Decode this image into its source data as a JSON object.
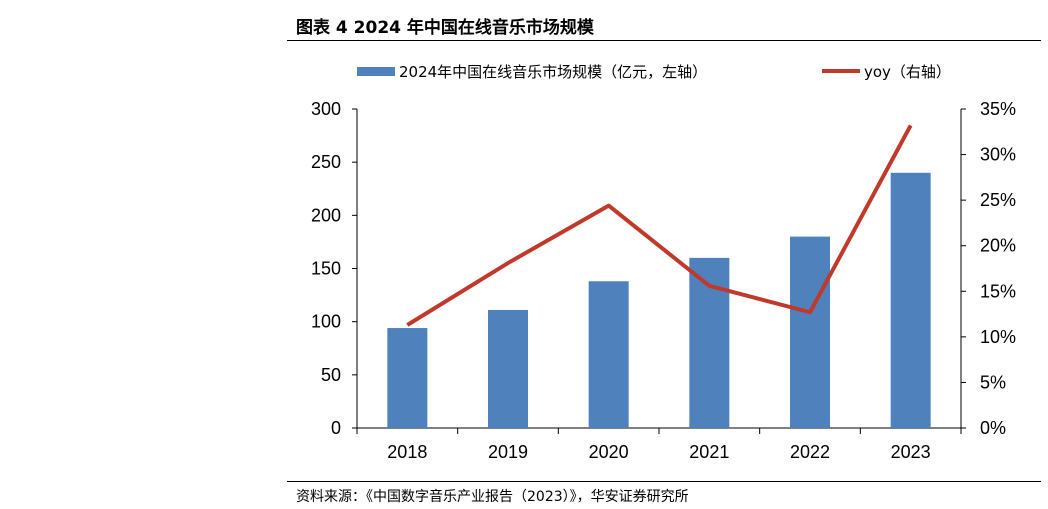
{
  "figure": {
    "title": "图表 4 2024 年中国在线音乐市场规模",
    "source": "资料来源：《中国数字音乐产业报告（2023）》，华安证券研究所"
  },
  "chart_data": {
    "type": "bar",
    "categories": [
      "2018",
      "2019",
      "2020",
      "2021",
      "2022",
      "2023"
    ],
    "series": [
      {
        "name": "2024年中国在线音乐市场规模（亿元，左轴）",
        "type": "bar",
        "axis": "left",
        "values": [
          94,
          111,
          138,
          160,
          180,
          240
        ],
        "color": "#4f81bd"
      },
      {
        "name": "yoy（右轴）",
        "type": "line",
        "axis": "right",
        "values": [
          11.3,
          18.1,
          24.4,
          15.6,
          12.7,
          33.2
        ],
        "color": "#c0392b"
      }
    ],
    "left_axis": {
      "ylim": [
        0,
        300
      ],
      "ticks": [
        "0",
        "50",
        "100",
        "150",
        "200",
        "250",
        "300"
      ]
    },
    "right_axis": {
      "ylim": [
        0,
        35
      ],
      "ticks": [
        "0%",
        "5%",
        "10%",
        "15%",
        "20%",
        "25%",
        "30%",
        "35%"
      ]
    },
    "legend_position": "top",
    "grid": false
  }
}
